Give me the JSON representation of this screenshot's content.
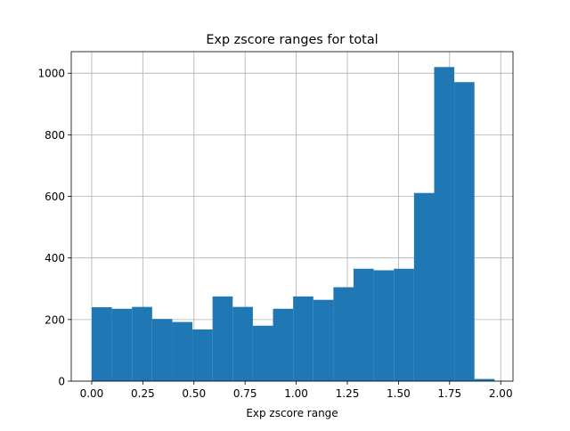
{
  "chart_data": {
    "type": "bar",
    "title": "Exp zscore ranges for total",
    "xlabel": "Exp zscore range",
    "ylabel": "",
    "xlim": [
      -0.1,
      2.06
    ],
    "ylim": [
      0,
      1070
    ],
    "grid": true,
    "legend": "none",
    "bar_color": "#1f77b4",
    "bin_width": 0.0985,
    "bins": [
      {
        "x": 0.0,
        "value": 240
      },
      {
        "x": 0.0985,
        "value": 235
      },
      {
        "x": 0.197,
        "value": 241
      },
      {
        "x": 0.2955,
        "value": 202
      },
      {
        "x": 0.394,
        "value": 192
      },
      {
        "x": 0.4925,
        "value": 168
      },
      {
        "x": 0.591,
        "value": 275
      },
      {
        "x": 0.6895,
        "value": 241
      },
      {
        "x": 0.788,
        "value": 180
      },
      {
        "x": 0.8865,
        "value": 235
      },
      {
        "x": 0.985,
        "value": 275
      },
      {
        "x": 1.0835,
        "value": 264
      },
      {
        "x": 1.182,
        "value": 305
      },
      {
        "x": 1.2805,
        "value": 365
      },
      {
        "x": 1.379,
        "value": 360
      },
      {
        "x": 1.4775,
        "value": 365
      },
      {
        "x": 1.576,
        "value": 611
      },
      {
        "x": 1.6745,
        "value": 1020
      },
      {
        "x": 1.773,
        "value": 971
      },
      {
        "x": 1.8715,
        "value": 7
      }
    ],
    "xticks": [
      {
        "value": 0.0,
        "label": "0.00"
      },
      {
        "value": 0.25,
        "label": "0.25"
      },
      {
        "value": 0.5,
        "label": "0.50"
      },
      {
        "value": 0.75,
        "label": "0.75"
      },
      {
        "value": 1.0,
        "label": "1.00"
      },
      {
        "value": 1.25,
        "label": "1.25"
      },
      {
        "value": 1.5,
        "label": "1.50"
      },
      {
        "value": 1.75,
        "label": "1.75"
      },
      {
        "value": 2.0,
        "label": "2.00"
      }
    ],
    "yticks": [
      {
        "value": 0,
        "label": "0"
      },
      {
        "value": 200,
        "label": "200"
      },
      {
        "value": 400,
        "label": "400"
      },
      {
        "value": 600,
        "label": "600"
      },
      {
        "value": 800,
        "label": "800"
      },
      {
        "value": 1000,
        "label": "1000"
      }
    ]
  }
}
